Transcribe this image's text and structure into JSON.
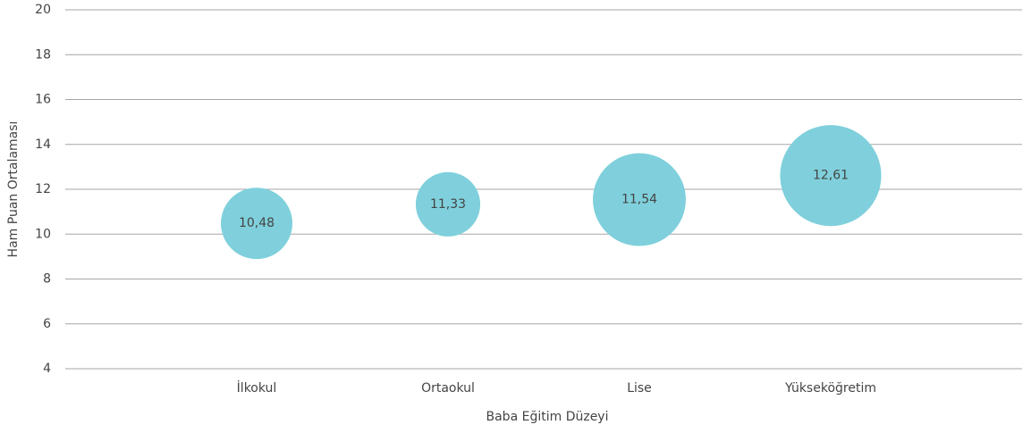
{
  "chart_data": {
    "type": "bubble",
    "categories": [
      "İlkokul",
      "Ortaokul",
      "Lise",
      "Yükseköğretim"
    ],
    "values": [
      10.48,
      11.33,
      11.54,
      12.61
    ],
    "value_labels": [
      "10,48",
      "11,33",
      "11,54",
      "12,61"
    ],
    "sizes": [
      16,
      13,
      27,
      32
    ],
    "color": "#7fd0dc",
    "xlabel": "Baba Eğitim Düzeyi",
    "ylabel": "Ham Puan Ortalaması",
    "ylim": [
      4,
      20
    ],
    "yticks": [
      4,
      6,
      8,
      10,
      12,
      14,
      16,
      18,
      20
    ],
    "grid": true
  }
}
